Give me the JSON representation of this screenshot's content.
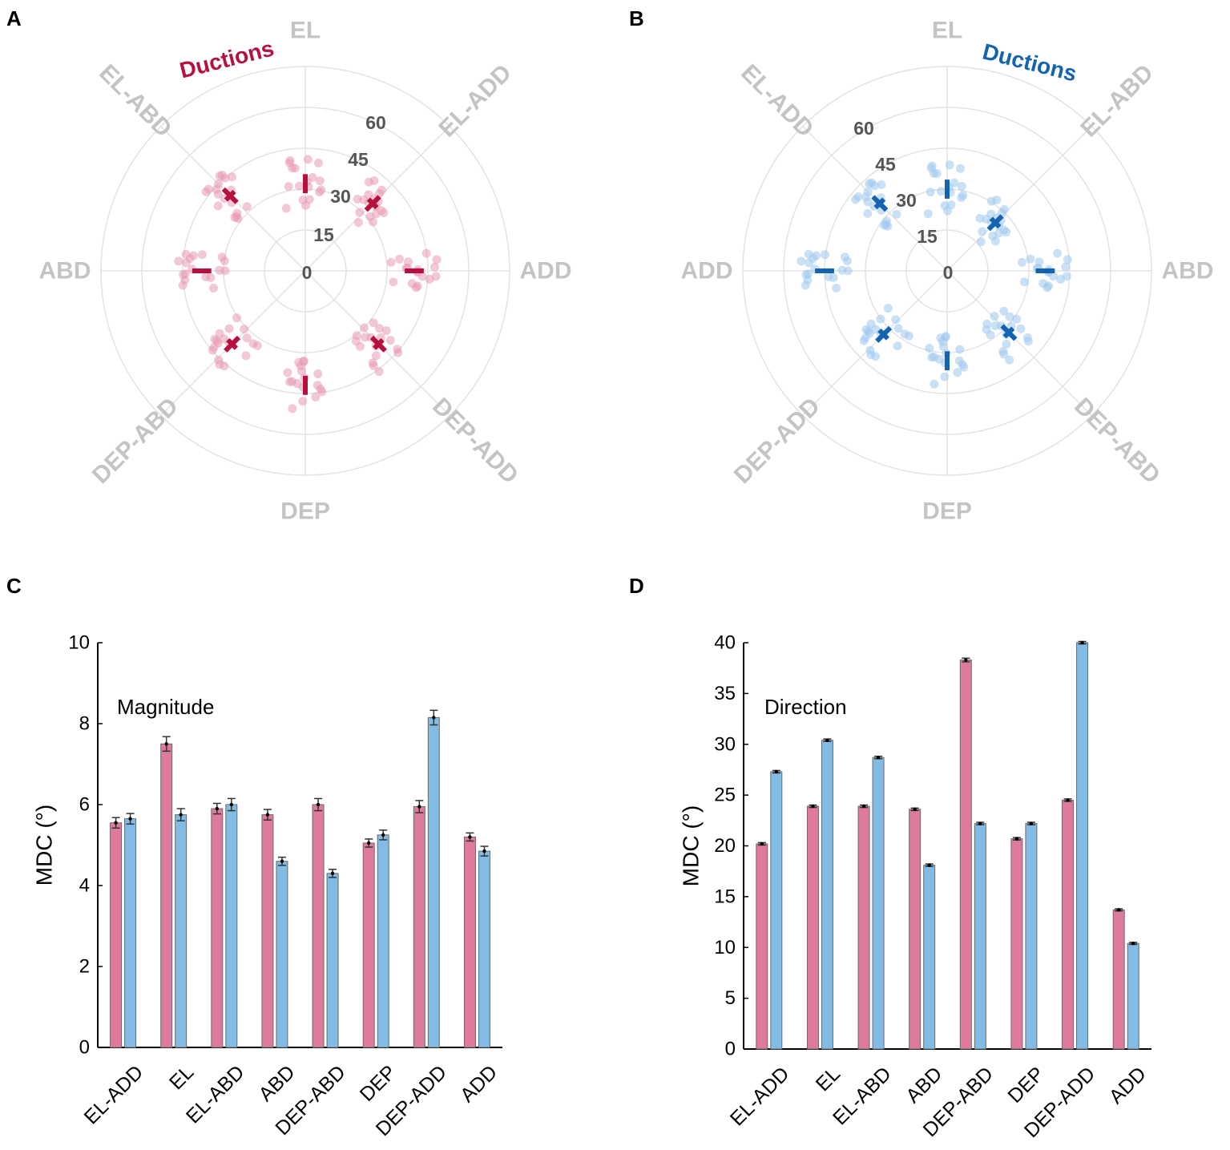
{
  "colors": {
    "red": "#b5103f",
    "red_light": "#e79ab2",
    "red_bar": "#de7a9b",
    "blue": "#1363b0",
    "blue_light": "#9fc8ec",
    "blue_bar": "#82bbe3",
    "grid": "#e3e3e3",
    "direction_label": "#c4c4c4"
  },
  "panels": {
    "A": {
      "letter": "A"
    },
    "B": {
      "letter": "B"
    },
    "C": {
      "letter": "C"
    },
    "D": {
      "letter": "D"
    }
  },
  "chart_data": [
    {
      "id": "A",
      "type": "scatter",
      "subtype": "polar",
      "title": "Ductions",
      "title_color": "#b5103f",
      "rings": [
        0,
        15,
        30,
        45,
        60
      ],
      "directions": [
        "EL",
        "EL-ADD",
        "ADD",
        "DEP-ADD",
        "DEP",
        "DEP-ABD",
        "ABD",
        "EL-ABD"
      ],
      "direction_angles_deg": [
        90,
        45,
        0,
        -45,
        -90,
        -135,
        180,
        135
      ],
      "mean_magnitudes": [
        32,
        35,
        40,
        38,
        42,
        38,
        38,
        39
      ],
      "series_color": "#b5103f"
    },
    {
      "id": "B",
      "type": "scatter",
      "subtype": "polar",
      "title": "Ductions",
      "title_color": "#1363b0",
      "rings": [
        0,
        15,
        30,
        45,
        60
      ],
      "directions": [
        "EL",
        "EL-ABD",
        "ABD",
        "DEP-ABD",
        "DEP",
        "DEP-ADD",
        "ADD",
        "EL-ADD"
      ],
      "direction_angles_deg": [
        90,
        45,
        0,
        -45,
        -90,
        -135,
        180,
        135
      ],
      "mean_magnitudes": [
        30,
        25,
        36,
        32,
        33,
        33,
        45,
        35
      ],
      "series_color": "#1363b0"
    },
    {
      "id": "C",
      "type": "bar",
      "title": "Magnitude",
      "xlabel": "",
      "ylabel": "MDC (°)",
      "ylim": [
        0,
        10
      ],
      "yticks": [
        0,
        2,
        4,
        6,
        8,
        10
      ],
      "categories": [
        "EL-ADD",
        "EL",
        "EL-ABD",
        "ABD",
        "DEP-ABD",
        "DEP",
        "DEP-ADD",
        "ADD"
      ],
      "series": [
        {
          "name": "red",
          "color": "#de7a9b",
          "values": [
            5.55,
            7.5,
            5.9,
            5.75,
            6.0,
            5.05,
            5.95,
            5.2
          ],
          "errors": [
            0.13,
            0.18,
            0.13,
            0.13,
            0.15,
            0.1,
            0.15,
            0.1
          ]
        },
        {
          "name": "blue",
          "color": "#82bbe3",
          "values": [
            5.65,
            5.75,
            6.0,
            4.6,
            4.3,
            5.25,
            8.15,
            4.85
          ],
          "errors": [
            0.13,
            0.15,
            0.15,
            0.1,
            0.1,
            0.12,
            0.18,
            0.12
          ]
        }
      ]
    },
    {
      "id": "D",
      "type": "bar",
      "title": "Direction",
      "xlabel": "",
      "ylabel": "MDC (°)",
      "ylim": [
        0,
        40
      ],
      "yticks": [
        0,
        5,
        10,
        15,
        20,
        25,
        30,
        35,
        40
      ],
      "categories": [
        "EL-ADD",
        "EL",
        "EL-ABD",
        "ABD",
        "DEP-ABD",
        "DEP",
        "DEP-ADD",
        "ADD"
      ],
      "series": [
        {
          "name": "red",
          "color": "#de7a9b",
          "values": [
            20.2,
            23.9,
            23.9,
            23.6,
            38.3,
            20.7,
            24.5,
            13.7
          ],
          "errors": [
            0.12,
            0.12,
            0.12,
            0.12,
            0.18,
            0.12,
            0.12,
            0.1
          ]
        },
        {
          "name": "blue",
          "color": "#82bbe3",
          "values": [
            27.3,
            30.4,
            28.7,
            18.1,
            22.2,
            22.2,
            40.0,
            10.4
          ],
          "errors": [
            0.12,
            0.12,
            0.12,
            0.12,
            0.12,
            0.12,
            0.12,
            0.1
          ]
        }
      ]
    }
  ]
}
